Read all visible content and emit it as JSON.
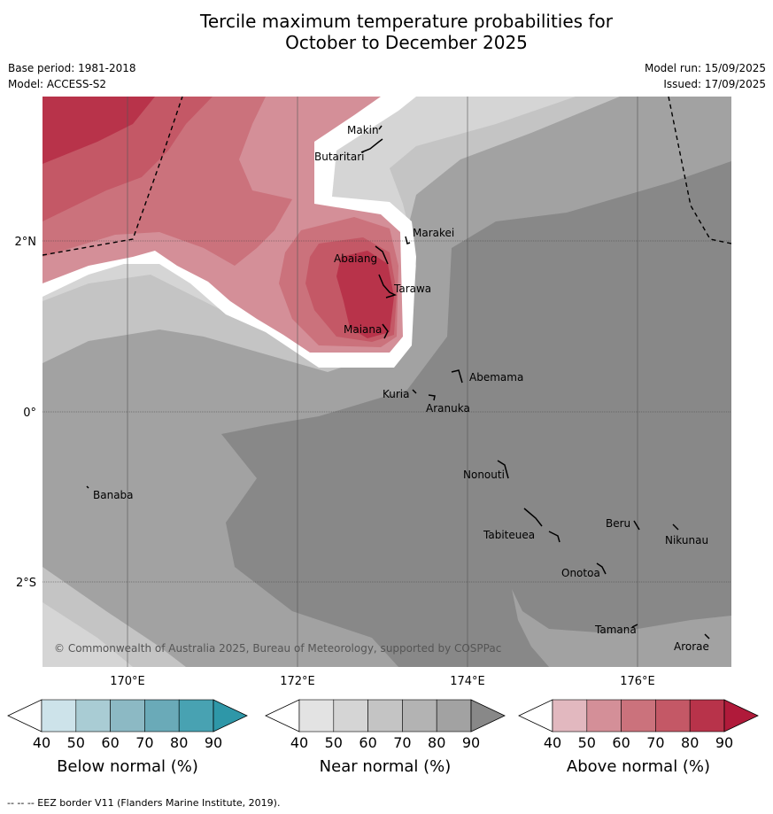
{
  "title_line1": "Tercile maximum temperature probabilities for",
  "title_line2": "October to December 2025",
  "base_period": "Base period: 1981-2018",
  "model": "Model: ACCESS-S2",
  "model_run": "Model run: 15/09/2025",
  "issued": "Issued: 17/09/2025",
  "copyright": "© Commonwealth of Australia 2025, Bureau of Meteorology, supported by COSPPac",
  "footnote": "--  --  -- EEZ border V11 (Flanders Marine Institute, 2019).",
  "map": {
    "lon_range": [
      169,
      177.1
    ],
    "lat_range": [
      -3,
      3.7
    ],
    "x_ticks": [
      "170°E",
      "172°E",
      "174°E",
      "176°E"
    ],
    "y_ticks": [
      "2°N",
      "0°",
      "2°S"
    ],
    "places": [
      {
        "name": "Makin"
      },
      {
        "name": "Butaritari"
      },
      {
        "name": "Marakei"
      },
      {
        "name": "Abaiang"
      },
      {
        "name": "Tarawa"
      },
      {
        "name": "Maiana"
      },
      {
        "name": "Abemama"
      },
      {
        "name": "Kuria"
      },
      {
        "name": "Aranuka"
      },
      {
        "name": "Banaba"
      },
      {
        "name": "Nonouti"
      },
      {
        "name": "Beru"
      },
      {
        "name": "Tabiteuea"
      },
      {
        "name": "Nikunau"
      },
      {
        "name": "Onotoa"
      },
      {
        "name": "Tamana"
      },
      {
        "name": "Arorae"
      }
    ]
  },
  "colorbars": [
    {
      "title": "Below normal (%)",
      "ticks": [
        "40",
        "50",
        "60",
        "70",
        "80",
        "90"
      ],
      "colors": [
        "#ffffff",
        "#cde3ea",
        "#a9ccd4",
        "#8cb9c4",
        "#6aaab8",
        "#48a2b2",
        "#2e97a8"
      ]
    },
    {
      "title": "Near normal (%)",
      "ticks": [
        "40",
        "50",
        "60",
        "70",
        "80",
        "90"
      ],
      "colors": [
        "#ffffff",
        "#e3e3e3",
        "#d5d5d5",
        "#c4c4c4",
        "#b3b3b3",
        "#a2a2a2",
        "#888888"
      ]
    },
    {
      "title": "Above normal (%)",
      "ticks": [
        "40",
        "50",
        "60",
        "70",
        "80",
        "90"
      ],
      "colors": [
        "#ffffff",
        "#e2b8bf",
        "#d48f98",
        "#cb727c",
        "#c45866",
        "#b8334a",
        "#b01a3a"
      ]
    }
  ]
}
